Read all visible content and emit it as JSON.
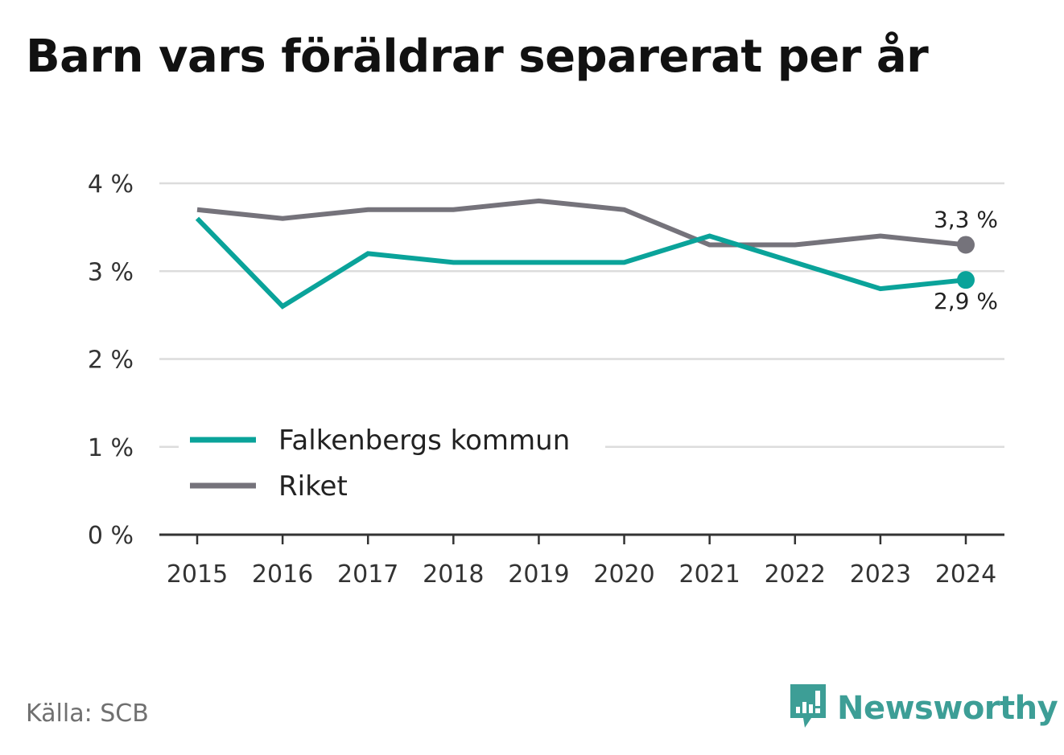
{
  "title": "Barn vars föräldrar separerat per år",
  "source": "Källa: SCB",
  "brand": {
    "name": "Newsworthy",
    "icon": "newsworthy-chat-bars-icon",
    "color": "#3d9e96"
  },
  "chart_data": {
    "type": "line",
    "title": "Barn vars föräldrar separerat per år",
    "xlabel": "",
    "ylabel": "",
    "x": [
      2015,
      2016,
      2017,
      2018,
      2019,
      2020,
      2021,
      2022,
      2023,
      2024
    ],
    "series": [
      {
        "name": "Falkenbergs kommun",
        "color": "#0aa39a",
        "values": [
          3.6,
          2.6,
          3.2,
          3.1,
          3.1,
          3.1,
          3.4,
          3.1,
          2.8,
          2.9
        ],
        "end_label": "2,9 %"
      },
      {
        "name": "Riket",
        "color": "#75737b",
        "values": [
          3.7,
          3.6,
          3.7,
          3.7,
          3.8,
          3.7,
          3.3,
          3.3,
          3.4,
          3.3
        ],
        "end_label": "3,3 %"
      }
    ],
    "yticks": [
      0,
      1,
      2,
      3,
      4
    ],
    "ytick_labels": [
      "0 %",
      "1 %",
      "2 %",
      "3 %",
      "4 %"
    ],
    "xtick_labels": [
      "2015",
      "2016",
      "2017",
      "2018",
      "2019",
      "2020",
      "2021",
      "2022",
      "2023",
      "2024"
    ],
    "ylim": [
      0,
      4
    ],
    "grid": true,
    "legend_position": "left"
  }
}
